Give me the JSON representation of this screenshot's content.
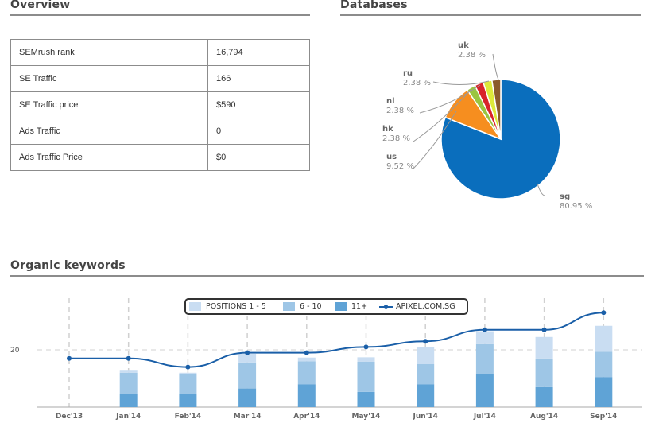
{
  "overview": {
    "title": "Overview",
    "rows": [
      {
        "label": "SEMrush rank",
        "value": "16,794"
      },
      {
        "label": "SE Traffic",
        "value": "166"
      },
      {
        "label": "SE Traffic price",
        "value": "$590"
      },
      {
        "label": "Ads Traffic",
        "value": "0"
      },
      {
        "label": "Ads Traffic Price",
        "value": "$0"
      }
    ]
  },
  "databases": {
    "title": "Databases"
  },
  "organic": {
    "title": "Organic keywords"
  },
  "colors": {
    "pie": {
      "sg": "#0a6ebd",
      "us": "#f68e1f",
      "hk": "#9ac541",
      "nl": "#d8232a",
      "ru": "#dde83a",
      "uk": "#8b5a2b"
    },
    "pos1_5": "#c9ddf2",
    "pos6_10": "#9ec6e6",
    "pos11": "#5fa3d6",
    "line": "#1a5fa8"
  },
  "chart_data": [
    {
      "type": "pie",
      "slices": [
        {
          "label": "sg",
          "value": 80.95,
          "pct_text": "80.95 %"
        },
        {
          "label": "us",
          "value": 9.52,
          "pct_text": "9.52 %"
        },
        {
          "label": "hk",
          "value": 2.38,
          "pct_text": "2.38 %"
        },
        {
          "label": "nl",
          "value": 2.38,
          "pct_text": "2.38 %"
        },
        {
          "label": "ru",
          "value": 2.38,
          "pct_text": "2.38 %"
        },
        {
          "label": "uk",
          "value": 2.38,
          "pct_text": "2.38 %"
        }
      ]
    },
    {
      "type": "bar",
      "stacked": true,
      "categories": [
        "Dec'13",
        "Jan'14",
        "Feb'14",
        "Mar'14",
        "Apr'14",
        "May'14",
        "Jun'14",
        "Jul'14",
        "Aug'14",
        "Sep'14"
      ],
      "series": [
        {
          "name": "POSITIONS 1 - 5",
          "values": [
            0,
            1.0,
            0.5,
            3.0,
            1.3,
            1.5,
            6.0,
            4.5,
            7.5,
            9.1
          ]
        },
        {
          "name": "6 - 10",
          "values": [
            0,
            7.5,
            7.0,
            9.1,
            8.0,
            10.6,
            7.0,
            10.5,
            10.0,
            8.8
          ]
        },
        {
          "name": "11+",
          "values": [
            0,
            4.5,
            4.5,
            6.5,
            8.0,
            5.3,
            8.0,
            11.5,
            7.0,
            10.5
          ]
        }
      ],
      "line_series": {
        "name": "APIXEL.COM.SG",
        "values": [
          17,
          17,
          14,
          19,
          19,
          21,
          23,
          27,
          27,
          33
        ]
      },
      "yticks": [
        20
      ],
      "ylim": [
        0,
        40
      ],
      "legend": "top-center"
    }
  ]
}
